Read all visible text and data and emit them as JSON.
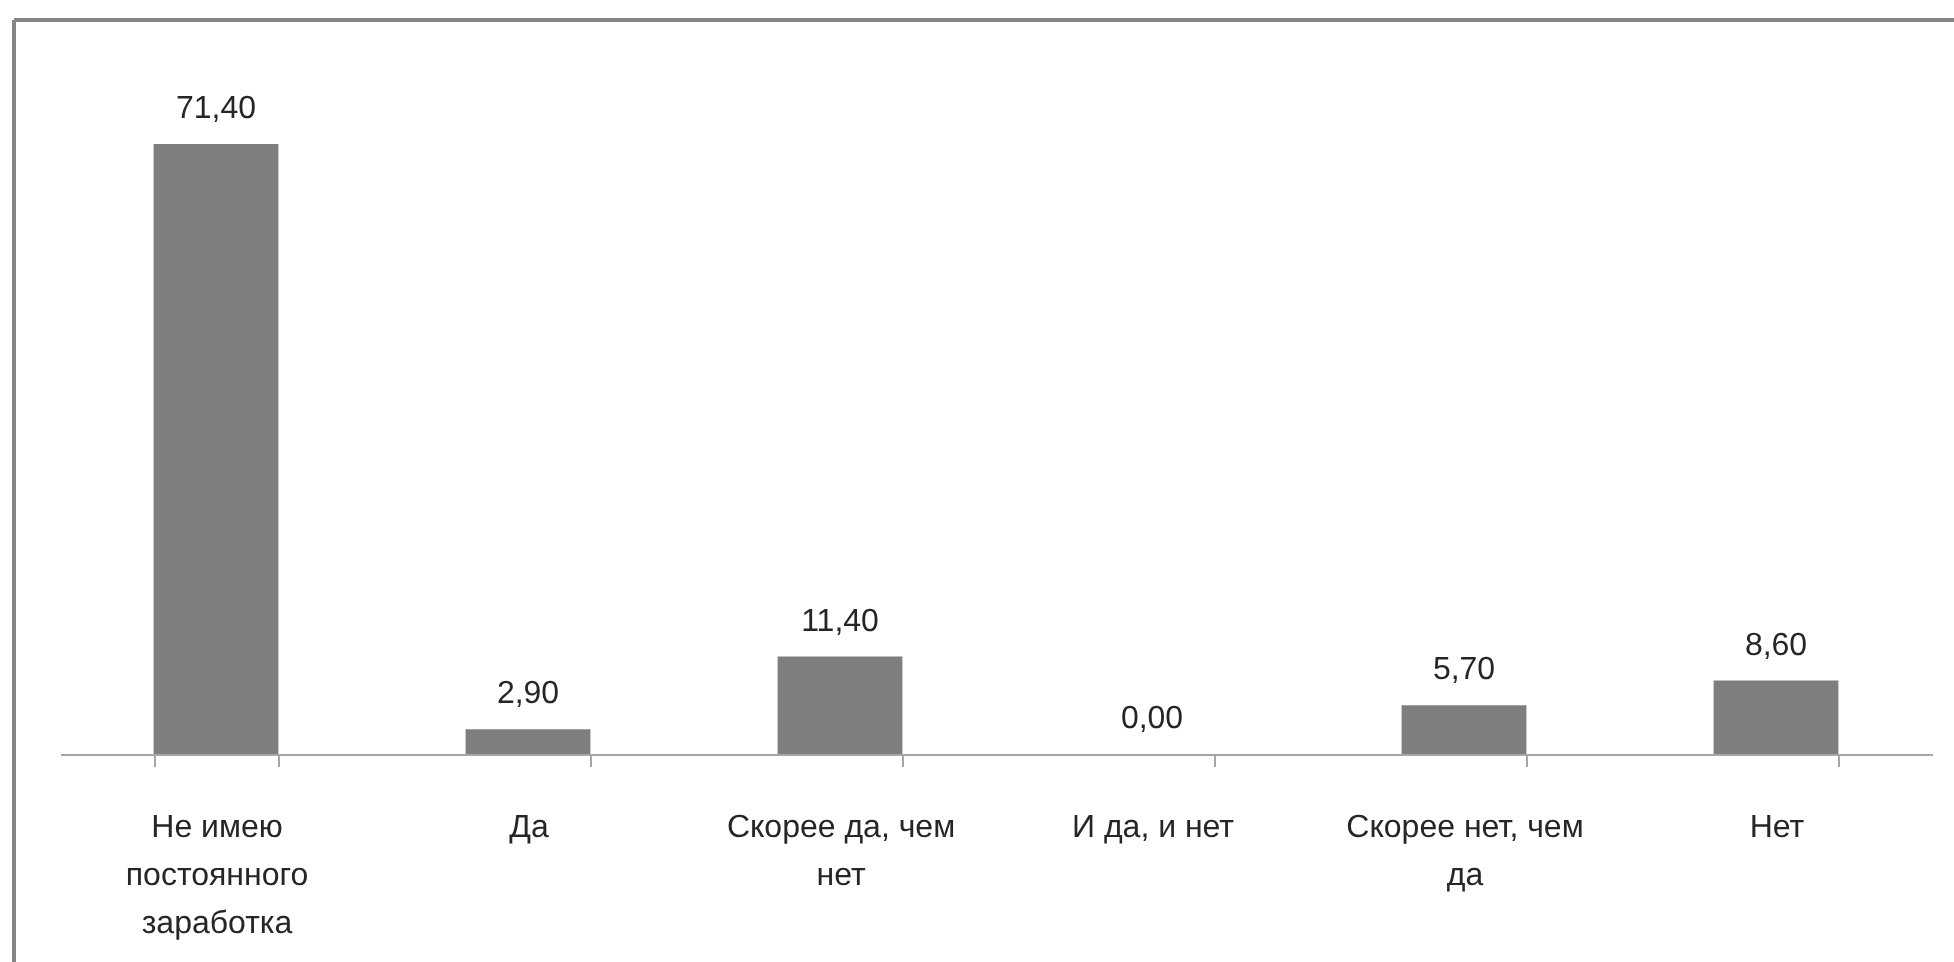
{
  "chart_data": {
    "type": "bar",
    "categories": [
      "Не имею постоянного заработка",
      "Да",
      "Скорее да, чем нет",
      "И да, и нет",
      "Скорее нет, чем да",
      "Нет"
    ],
    "values": [
      71.4,
      2.9,
      11.4,
      0.0,
      5.7,
      8.6
    ],
    "value_labels": [
      "71,40",
      "2,90",
      "11,40",
      "0,00",
      "5,70",
      "8,60"
    ],
    "color": "#7f7f7f",
    "tick_labels": "x",
    "grid": false
  }
}
